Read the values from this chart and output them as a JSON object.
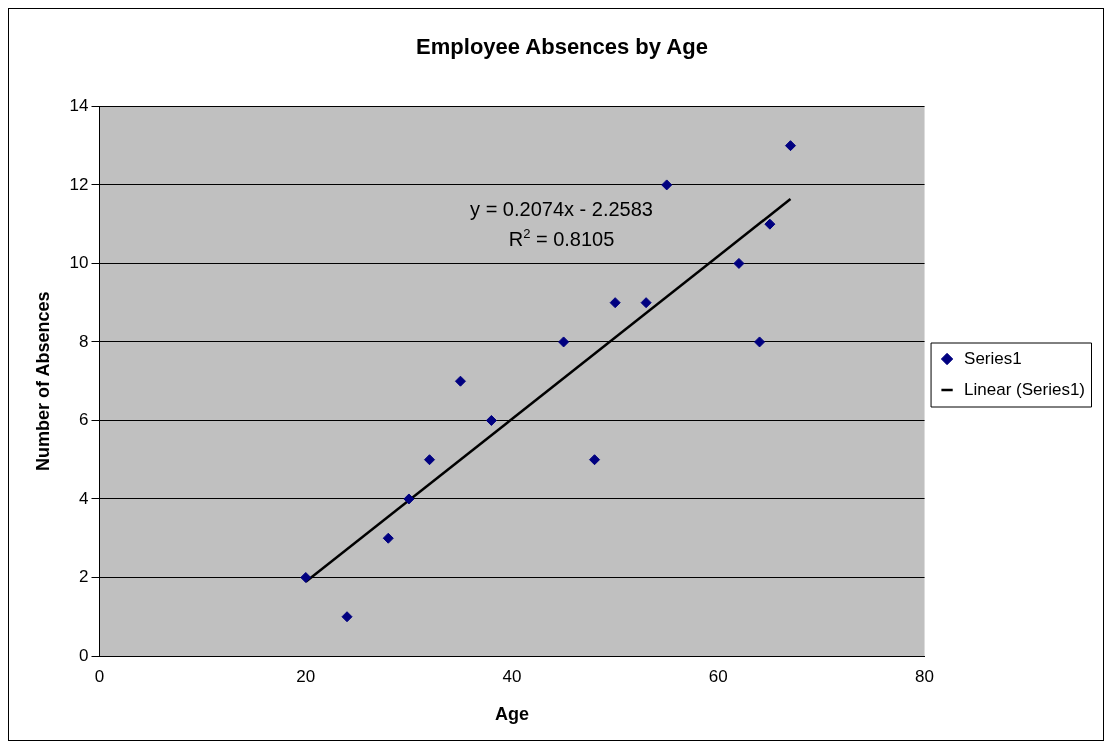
{
  "chart_data": {
    "type": "scatter",
    "title": "Employee Absences by Age",
    "xlabel": "Age",
    "ylabel": "Number of Absences",
    "xlim": [
      0,
      80
    ],
    "xticks": [
      0,
      20,
      40,
      60,
      80
    ],
    "ylim": [
      0,
      14
    ],
    "yticks": [
      0,
      2,
      4,
      6,
      8,
      10,
      12,
      14
    ],
    "grid": "y",
    "legend": "right",
    "marker": "diamond",
    "series": [
      {
        "name": "Series1",
        "type": "scatter",
        "color": "#000080",
        "x": [
          20,
          24,
          28,
          30,
          32,
          35,
          38,
          45,
          48,
          50,
          53,
          55,
          62,
          64,
          65,
          67
        ],
        "values": [
          2,
          1,
          3,
          4,
          5,
          7,
          6,
          8,
          5,
          9,
          9,
          12,
          10,
          8,
          11,
          13
        ]
      },
      {
        "name": "Linear (Series1)",
        "type": "line",
        "color": "#000000",
        "marker": "none",
        "x": [
          20,
          67
        ],
        "values": [
          1.89,
          11.64
        ]
      }
    ],
    "annotations": [
      "y = 0.2074x - 2.2583",
      "R$^{2}$ = 0.8105"
    ]
  }
}
